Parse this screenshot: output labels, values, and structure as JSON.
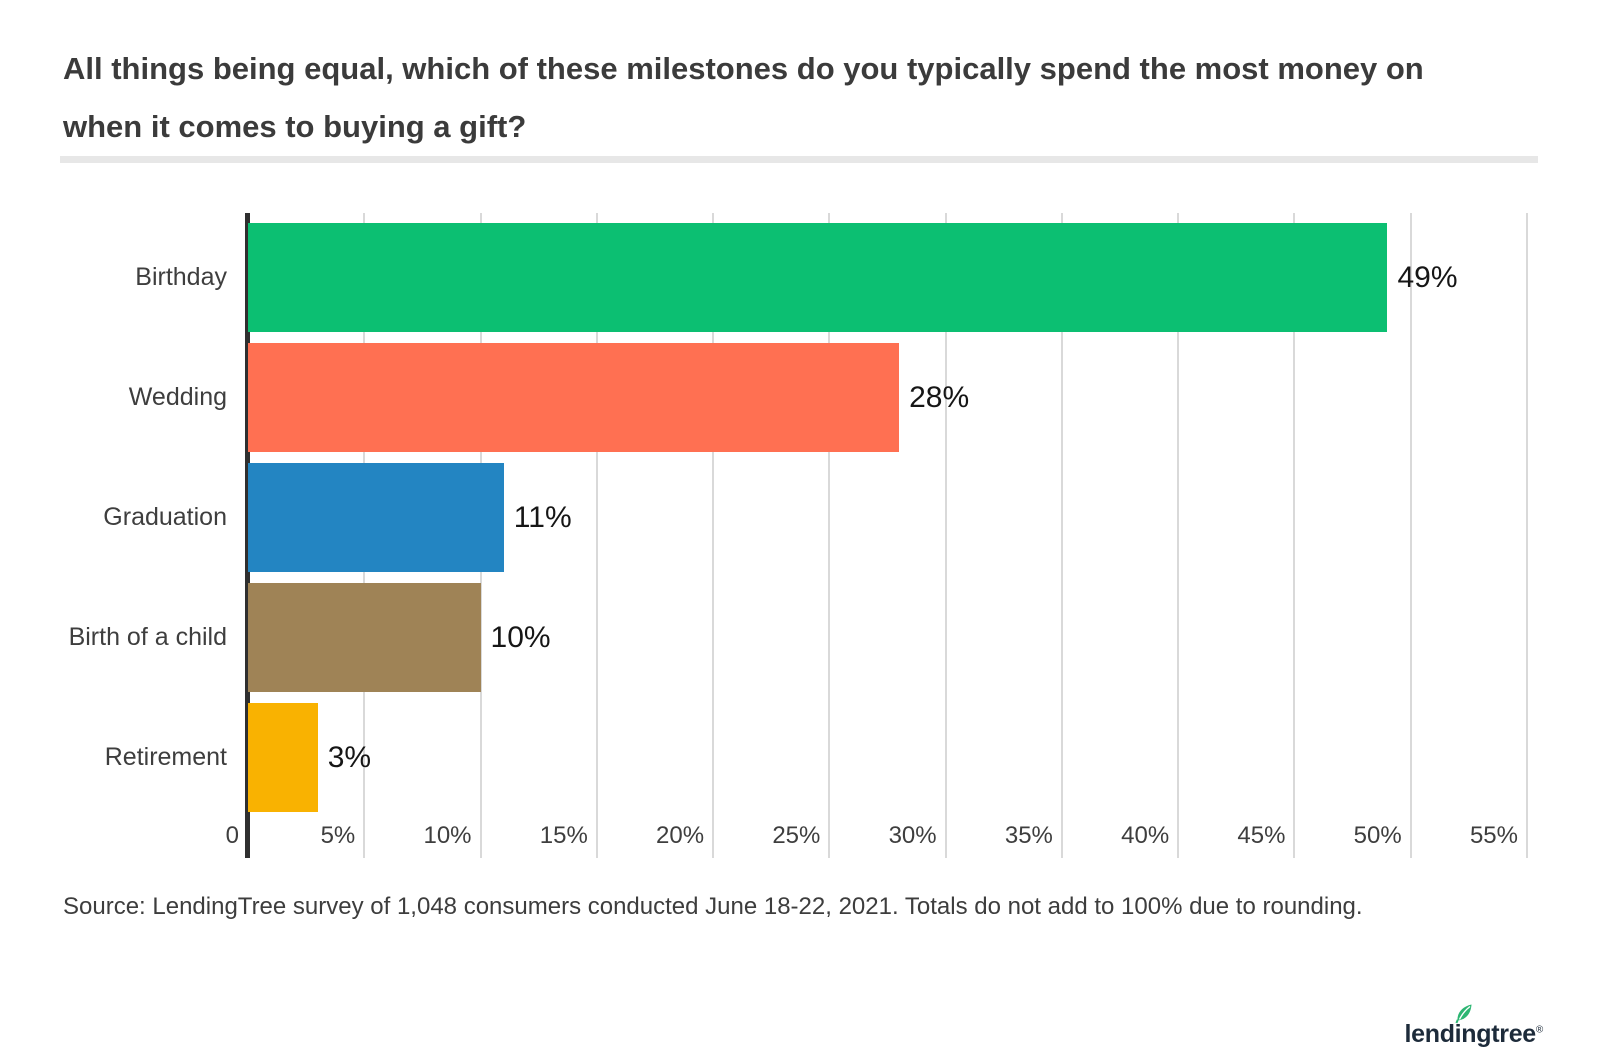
{
  "title": "All things being equal, which of these milestones do you typically spend the most money on when it comes to buying a gift?",
  "source": "Source: LendingTree survey of 1,048 consumers conducted June 18-22, 2021. Totals do not add to 100% due to rounding.",
  "logo": {
    "text": "lendingtree",
    "registered": "®"
  },
  "colors": {
    "title_text": "#3b3b3b",
    "divider": "#e7e7e7",
    "axis": "#2f2f2f",
    "gridline": "#d9d9d9",
    "value_text": "#161616",
    "label_text": "#3e3e3e",
    "logo_navy": "#1d2b3a",
    "logo_leaf_green": "#2db673"
  },
  "chart_data": {
    "type": "bar",
    "orientation": "horizontal",
    "title": "All things being equal, which of these milestones do you typically spend the most money on when it comes to buying a gift?",
    "categories": [
      "Birthday",
      "Wedding",
      "Graduation",
      "Birth of a child",
      "Retirement"
    ],
    "values": [
      49,
      28,
      11,
      10,
      3
    ],
    "value_labels": [
      "49%",
      "28%",
      "11%",
      "10%",
      "3%"
    ],
    "bar_colors": [
      "#0cbf72",
      "#ff7052",
      "#2385c2",
      "#9f8356",
      "#f9b201"
    ],
    "x_ticks": [
      "0",
      "5%",
      "10%",
      "15%",
      "20%",
      "25%",
      "30%",
      "35%",
      "40%",
      "45%",
      "50%",
      "55%"
    ],
    "xlim": [
      0,
      55
    ],
    "xlabel": "",
    "ylabel": "",
    "grid": "vertical gridlines every 5%",
    "legend": "none"
  }
}
